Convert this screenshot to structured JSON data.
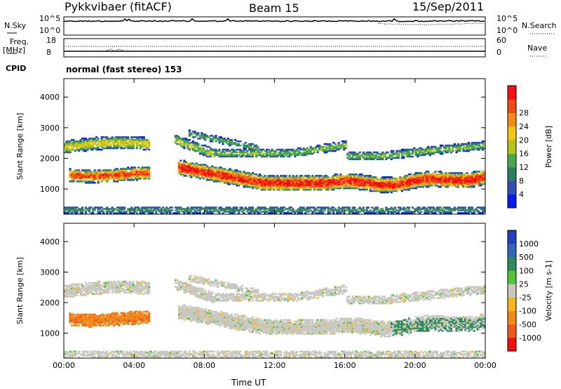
{
  "header": {
    "station": "Pykkvibaer (fitACF)",
    "beam": "Beam 15",
    "date": "15/Sep/2011"
  },
  "top_panels": {
    "nsky_label": "N.Sky",
    "nsky_ticks": [
      "10^5",
      "10^0"
    ],
    "nsearch_label": "N.Search",
    "nsearch_ticks": [
      "10^5",
      "10^0"
    ],
    "freq_label": "Freq.",
    "freq_unit": "[MHz]",
    "freq_ticks": [
      "18",
      "8"
    ],
    "nave_label": "Nave",
    "nave_ticks": [
      "60",
      "0"
    ],
    "cpid_label": "CPID",
    "cpid_value": "normal (fast stereo) 153"
  },
  "chart_data": [
    {
      "type": "heatmap",
      "title": "",
      "xlabel": "Time UT",
      "ylabel": "Slant Range [km]",
      "x_ticks": [
        "00:00",
        "04:00",
        "08:00",
        "12:00",
        "16:00",
        "20:00",
        "00:00"
      ],
      "y_ticks": [
        1000,
        2000,
        3000,
        4000
      ],
      "x_range_hours": [
        0,
        24
      ],
      "y_range_km": [
        180,
        4600
      ],
      "colorbar": {
        "label": "Power [dB]",
        "ticks": [
          4,
          8,
          12,
          16,
          20,
          24,
          28
        ],
        "colors": [
          "#0a1bf0",
          "#2f4fb4",
          "#2e7d63",
          "#49a94a",
          "#b5c31e",
          "#f2c618",
          "#f58b17",
          "#f04a1a",
          "#f41010"
        ]
      }
    },
    {
      "type": "heatmap",
      "title": "",
      "xlabel": "Time UT",
      "ylabel": "Slant Range [km]",
      "x_ticks": [
        "00:00",
        "04:00",
        "08:00",
        "12:00",
        "16:00",
        "20:00",
        "00:00"
      ],
      "y_ticks": [
        1000,
        2000,
        3000,
        4000
      ],
      "x_range_hours": [
        0,
        24
      ],
      "y_range_km": [
        180,
        4600
      ],
      "colorbar": {
        "label": "Velocity [m s-1]",
        "ticks": [
          1000,
          500,
          100,
          25,
          -25,
          -100,
          -500,
          -1000
        ],
        "colors": [
          "#1f3fbf",
          "#3466b8",
          "#2f8a5e",
          "#55c23a",
          "#c8c8c0",
          "#f0b81a",
          "#f08a1a",
          "#f05a1a",
          "#f01010"
        ]
      }
    }
  ],
  "time_label": "Time UT"
}
